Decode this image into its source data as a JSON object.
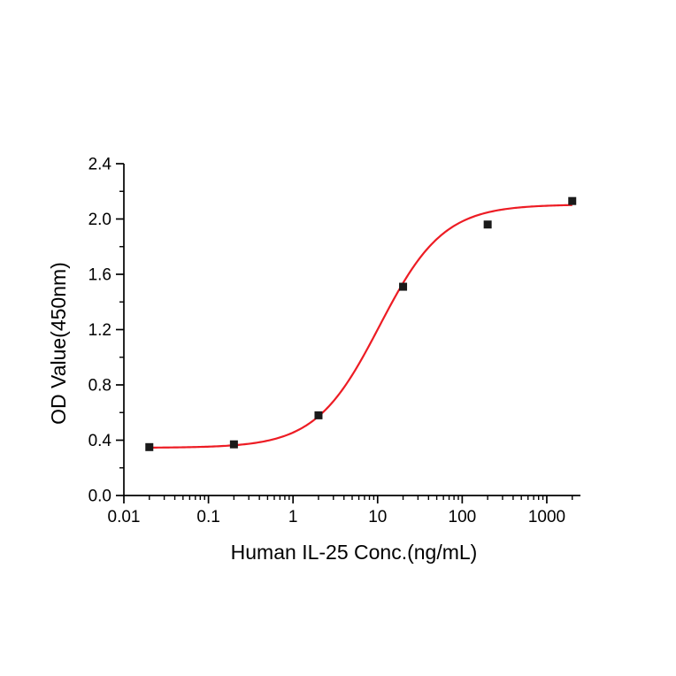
{
  "figure": {
    "background": "#ffffff"
  },
  "chart_data": {
    "type": "scatter",
    "title": "",
    "xlabel": "Human IL-25 Conc.(ng/mL)",
    "ylabel": "OD Value(450nm)",
    "x_scale": "log",
    "xlim": [
      0.01,
      2500
    ],
    "ylim": [
      0,
      2.4
    ],
    "x_ticks": [
      0.01,
      0.1,
      1,
      10,
      100,
      1000
    ],
    "y_ticks": [
      0,
      0.4,
      0.8,
      1.2,
      1.6,
      2,
      2.4
    ],
    "y_minor_step": 0.2,
    "grid": false,
    "legend_position": "none",
    "points": {
      "x": [
        0.02,
        0.2,
        2,
        20,
        200,
        2000
      ],
      "y": [
        0.35,
        0.37,
        0.58,
        1.51,
        1.96,
        2.13
      ]
    },
    "fit_curve": {
      "model": "4PL",
      "bottom": 0.345,
      "top": 2.105,
      "ec50": 10.5,
      "hill": 1.15,
      "x_start": 0.02,
      "x_end": 2000
    },
    "colors": {
      "curve": "#ed1c24",
      "marker": "#1a1a1a",
      "axis": "#000000"
    }
  }
}
